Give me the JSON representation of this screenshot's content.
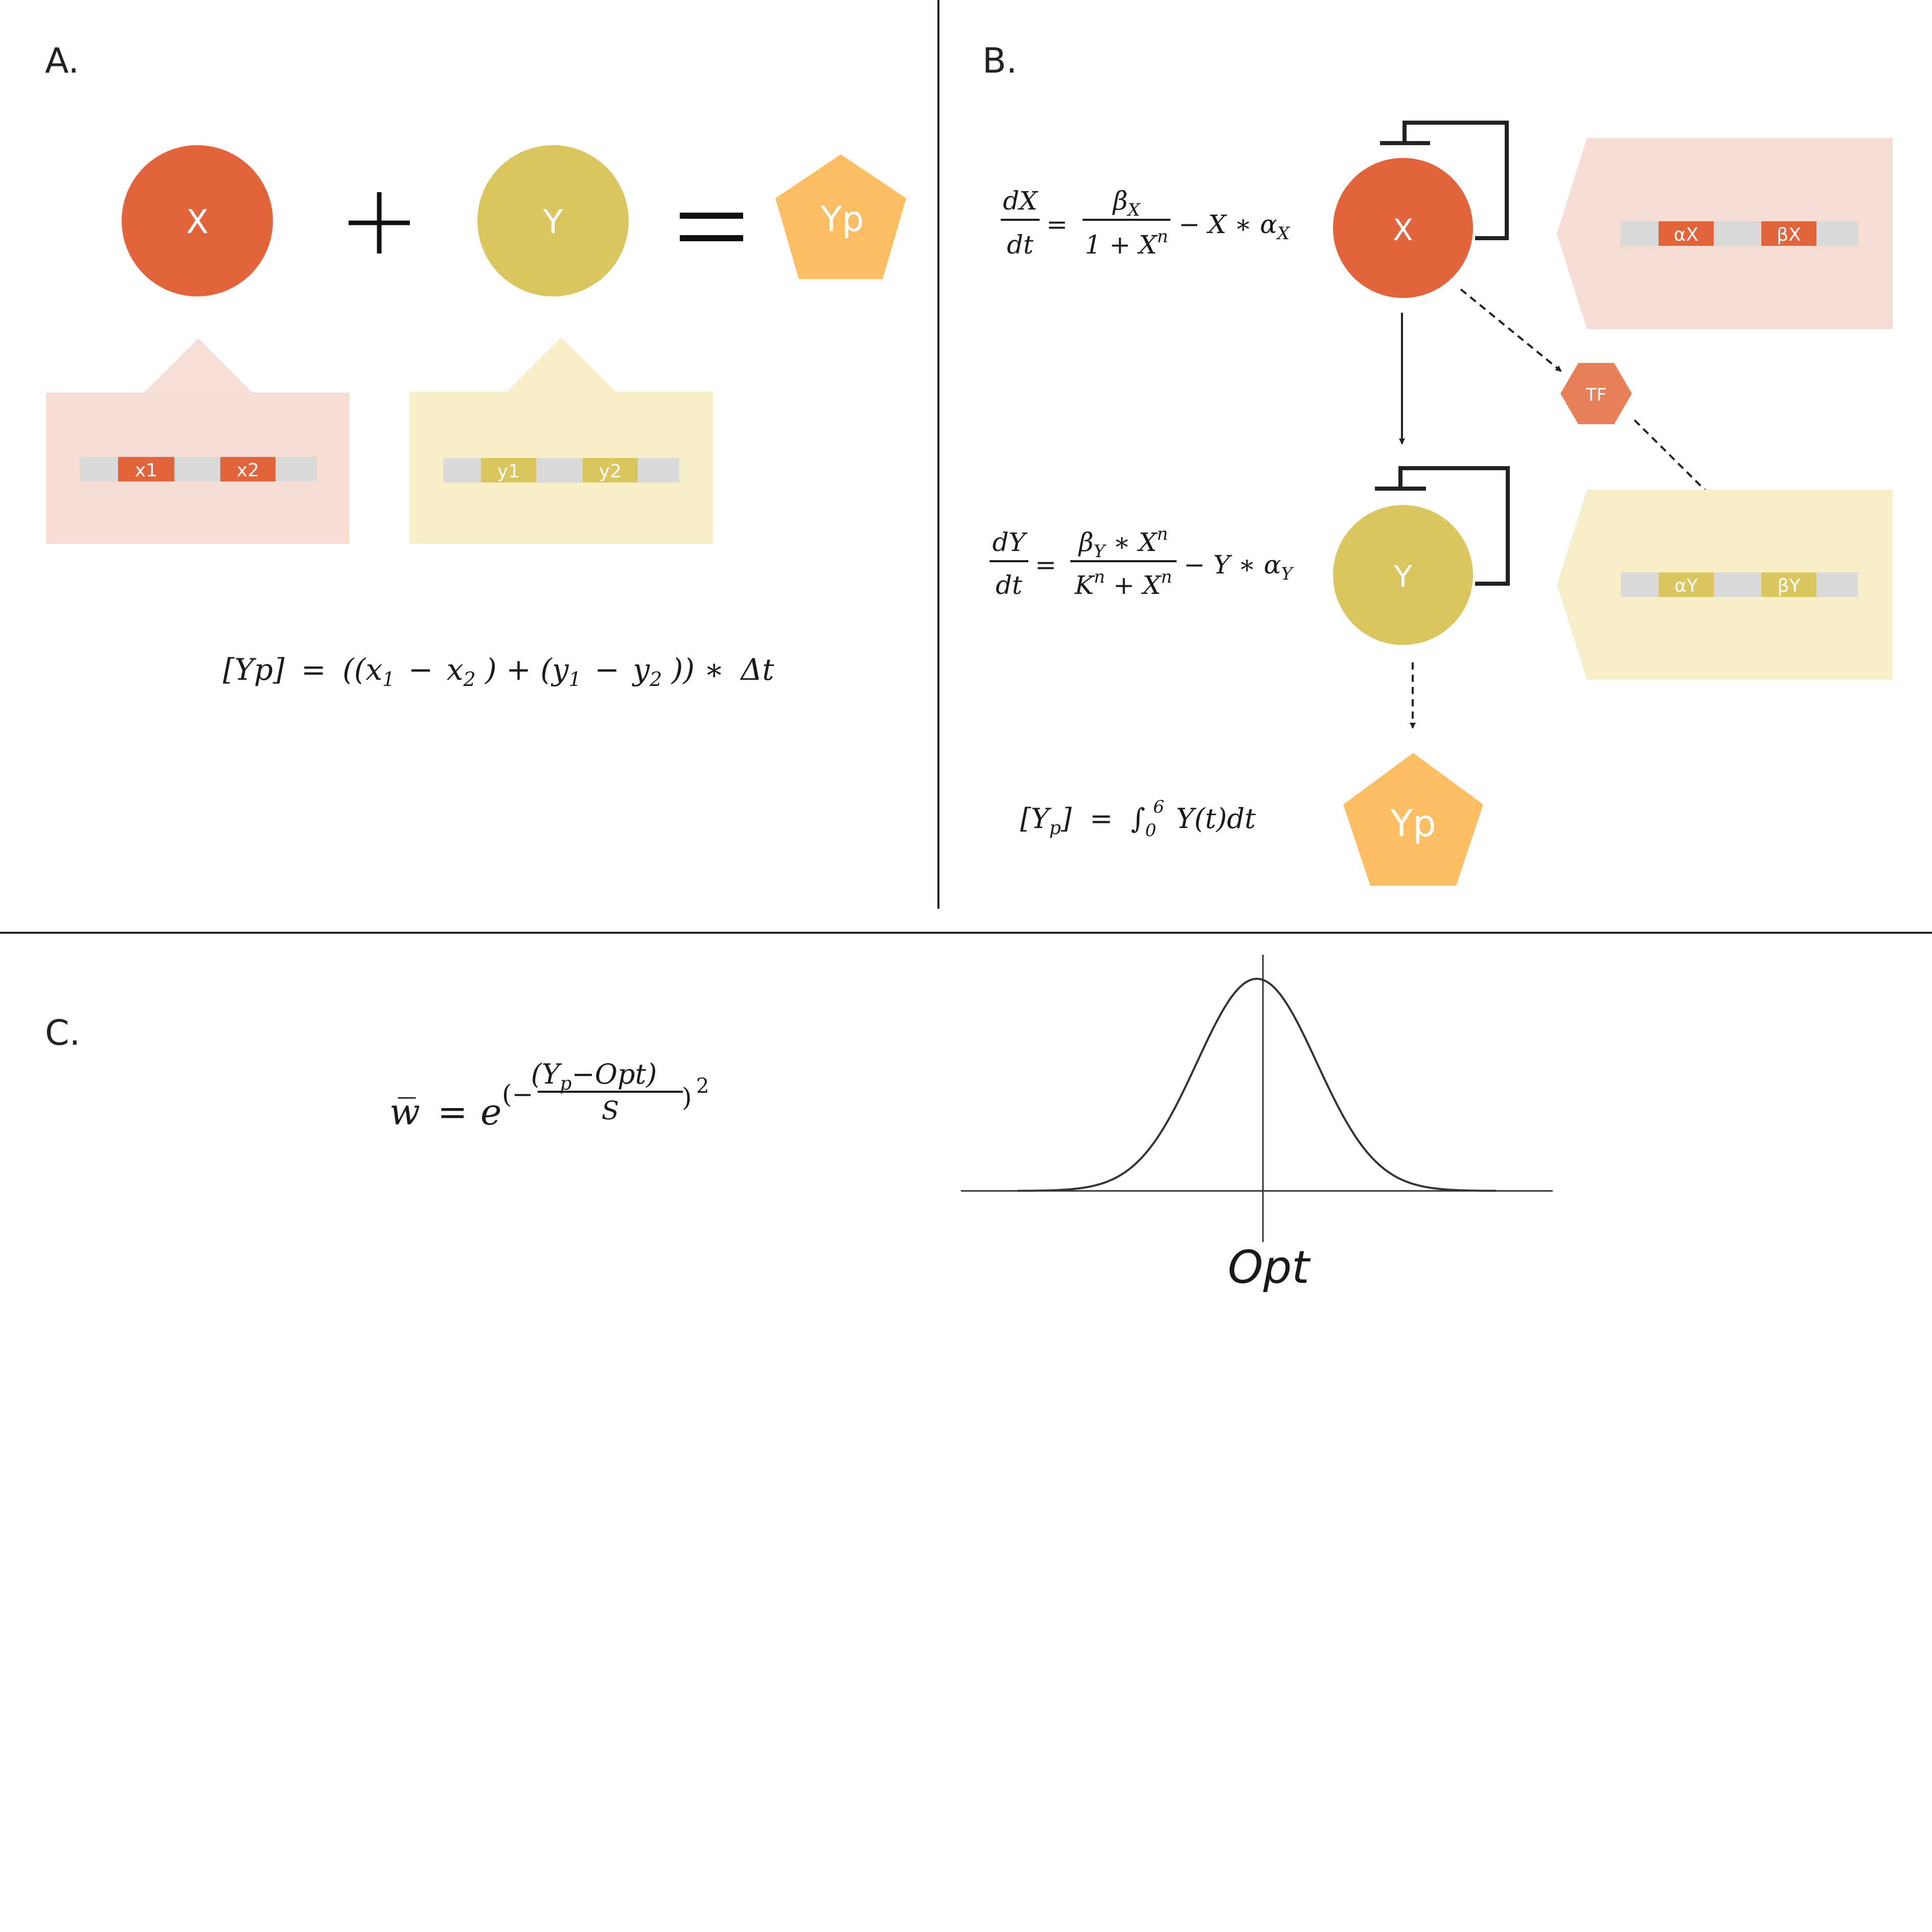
{
  "panels": {
    "a": {
      "label": "A."
    },
    "b": {
      "label": "B."
    },
    "c": {
      "label": "C."
    }
  },
  "colors": {
    "x": "#E2643C",
    "y": "#DBC55E",
    "yp": "#FDBE63",
    "tf": "#E8805C",
    "x_box": "#F6DDD3",
    "y_box": "#F7EECA",
    "x_tab": "#F6E0D6",
    "y_tab": "#F7EDC9",
    "gene_bar": "#D9D9D9",
    "ink": "#222222"
  },
  "panel_a": {
    "x_label": "X",
    "y_label": "Y",
    "yp_label": "Yp",
    "x_genes": [
      "x1",
      "x2"
    ],
    "y_genes": [
      "y1",
      "y2"
    ],
    "equation": {
      "lhs": "[Yp]",
      "eq": "=",
      "open": "((",
      "x1": "x",
      "x1_sub": "1",
      "minus1": "−",
      "x2": "x",
      "x2_sub": "2",
      "mid": ") + (",
      "y1": "y",
      "y1_sub": "1",
      "minus2": "−",
      "y2": "y",
      "y2_sub": "2",
      "close": ")) ∗ ",
      "dt": "Δt"
    }
  },
  "panel_b": {
    "x_label": "X",
    "y_label": "Y",
    "tf_label": "TF",
    "yp_label": "Yp",
    "x_genes": [
      "αX",
      "βX"
    ],
    "y_genes": [
      "αY",
      "βY"
    ],
    "eq_x": {
      "lhs_num": "dX",
      "lhs_den": "dt",
      "eq": "=",
      "num": "β",
      "num_sub": "X",
      "den": "1 + X",
      "den_sup": "n",
      "tail": "−  X ∗ α",
      "tail_sub": "X"
    },
    "eq_y": {
      "lhs_num": "dY",
      "lhs_den": "dt",
      "eq": "=",
      "num": "β",
      "num_sub": "Y",
      "num_mid": " ∗ X",
      "num_sup": "n",
      "den_a": "K",
      "den_a_sup": "n",
      "den_b": " + X",
      "den_b_sup": "n",
      "tail": "−  Y ∗ α",
      "tail_sub": "Y"
    },
    "eq_yp": {
      "open": "[Y",
      "open_sub": "p",
      "close": "]",
      "eq": "=",
      "integral": "∫",
      "lower": "0",
      "upper": "6",
      "body": "Y(t)dt"
    }
  },
  "panel_c": {
    "equation": {
      "lhs": "w̅",
      "eq": "=",
      "base": "e",
      "open": "(−",
      "num": "(Y",
      "num_sub": "p",
      "num_rest": "−Opt)",
      "den": "S",
      "close": ")",
      "power": "2"
    },
    "chart_data": {
      "type": "line",
      "description_curve": "gaussian",
      "x_label": "Opt",
      "x": [
        -4,
        -3.5,
        -3,
        -2.5,
        -2,
        -1.5,
        -1,
        -0.5,
        0,
        0.5,
        1,
        1.5,
        2,
        2.5,
        3,
        3.5,
        4
      ],
      "y": [
        0.0003,
        0.0022,
        0.0111,
        0.0439,
        0.1353,
        0.3247,
        0.6065,
        0.8825,
        1.0,
        0.8825,
        0.6065,
        0.3247,
        0.1353,
        0.0439,
        0.0111,
        0.0022,
        0.0003
      ],
      "xlim": [
        -4.95,
        4.95
      ],
      "ylim": [
        0,
        1
      ],
      "grid": false
    }
  }
}
